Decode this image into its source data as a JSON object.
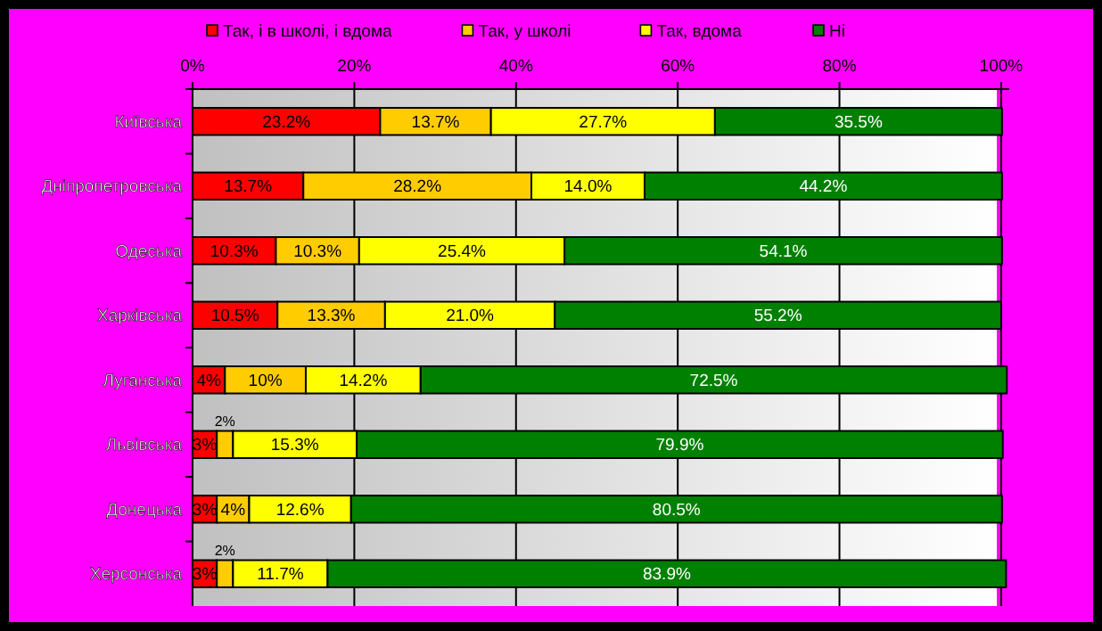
{
  "chart_data": {
    "type": "bar",
    "orientation": "horizontal",
    "stacked": true,
    "legend": "top",
    "grid": "x",
    "categories": [
      "Київська",
      "Дніпропетровська",
      "Одеська",
      "Харківська",
      "Луганська",
      "Львівська",
      "Донецька",
      "Херсонська"
    ],
    "xlim": [
      0,
      101
    ],
    "xticks": [
      {
        "value": 0,
        "label": "0%"
      },
      {
        "value": 20,
        "label": "20%"
      },
      {
        "value": 40,
        "label": "40%"
      },
      {
        "value": 60,
        "label": "60%"
      },
      {
        "value": 80,
        "label": "80%"
      },
      {
        "value": 100,
        "label": "100%"
      }
    ],
    "series": [
      {
        "name": "Так, і в школі, і вдома",
        "color": "#ff0000",
        "values": [
          23.2,
          13.7,
          10.3,
          10.5,
          4,
          3,
          3,
          3
        ],
        "value_labels": [
          "23.2%",
          "13.7%",
          "10.3%",
          "10.5%",
          "4%",
          "3%",
          "3%",
          "3%"
        ]
      },
      {
        "name": "Так, у школі",
        "color": "#ffcc00",
        "values": [
          13.7,
          28.2,
          10.3,
          13.3,
          10,
          2,
          4,
          2
        ],
        "value_labels": [
          "13.7%",
          "28.2%",
          "10.3%",
          "13.3%",
          "10%",
          "2%",
          "4%",
          "2%"
        ]
      },
      {
        "name": "Так, вдома",
        "color": "#ffff00",
        "values": [
          27.7,
          14.0,
          25.4,
          21.0,
          14.2,
          15.3,
          12.6,
          11.7
        ],
        "value_labels": [
          "27.7%",
          "14.0%",
          "25.4%",
          "21.0%",
          "14.2%",
          "15.3%",
          "12.6%",
          "11.7%"
        ]
      },
      {
        "name": "Ні",
        "color": "#008000",
        "values": [
          35.5,
          44.2,
          54.1,
          55.2,
          72.5,
          79.9,
          80.5,
          83.9
        ],
        "value_labels": [
          "35.5%",
          "44.2%",
          "54.1%",
          "55.2%",
          "72.5%",
          "79.9%",
          "80.5%",
          "83.9%"
        ]
      }
    ]
  }
}
